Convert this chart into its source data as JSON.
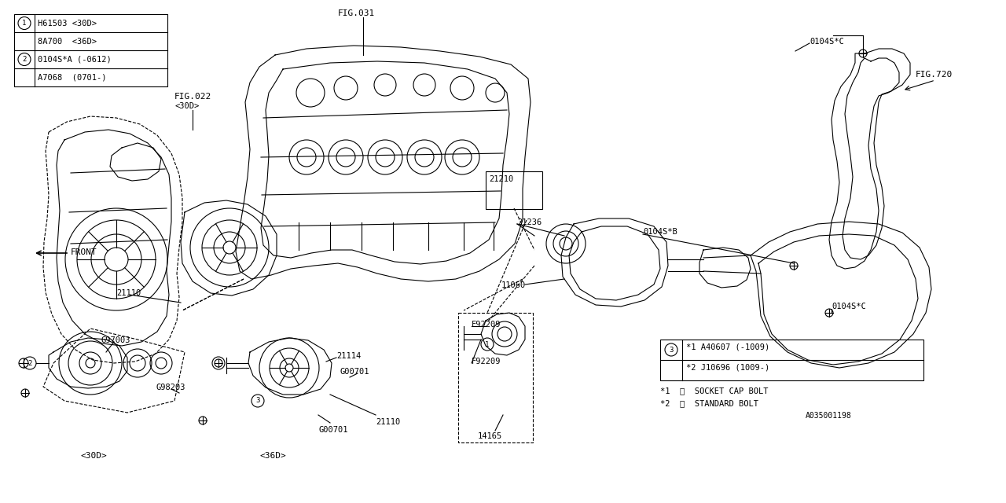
{
  "bg_color": "#ffffff",
  "line_color": "#000000",
  "legend_box1_rows": [
    {
      "circle": "1",
      "text": "H61503 <30D>"
    },
    {
      "circle": "",
      "text": "8A700  <36D>"
    },
    {
      "circle": "2",
      "text": "0104S*A (-0612)"
    },
    {
      "circle": "",
      "text": "A7068  (0701-)"
    }
  ],
  "legend_box2_rows": [
    {
      "circle": "3",
      "text": "*1 A40607 (-1009)"
    },
    {
      "circle": "",
      "text": "*2 J10696 (1009-)"
    }
  ],
  "legend_box2_notes": [
    "*1  SOCKET CAP BOLT",
    "*2  STANDARD BOLT"
  ],
  "legend_box2_code": "A035001198"
}
